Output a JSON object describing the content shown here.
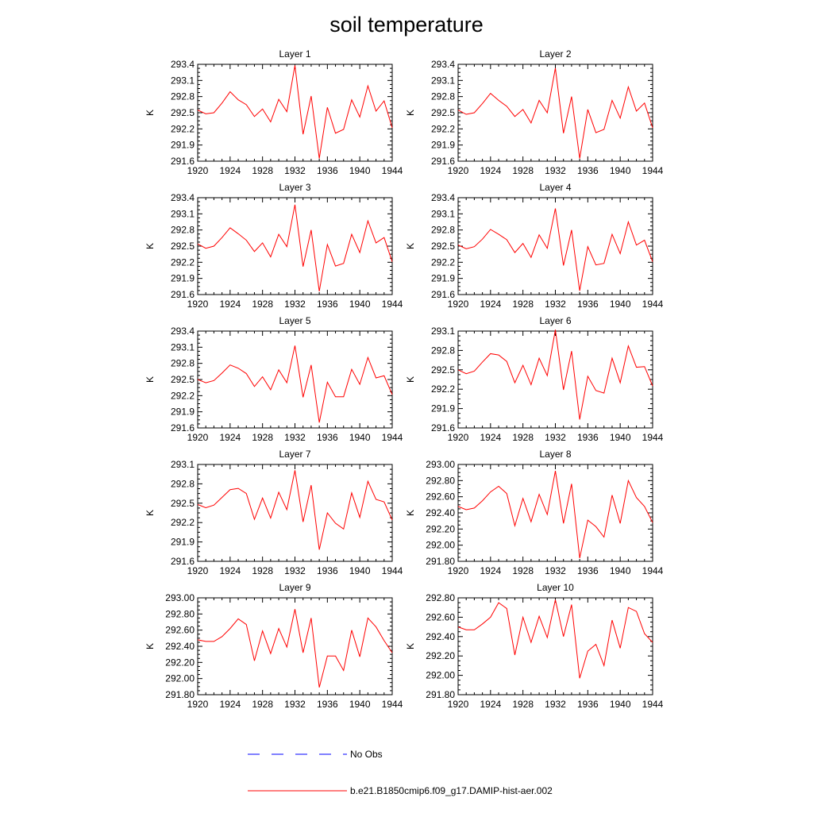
{
  "title": "soil temperature",
  "colors": {
    "model_line": "#ff0000",
    "obs_line": "#0000ff",
    "axis": "#000000"
  },
  "legend": {
    "items": [
      {
        "label": "No Obs",
        "style": "dashed",
        "color": "#0000ff"
      },
      {
        "label": "b.e21.B1850cmip6.f09_g17.DAMIP-hist-aer.002",
        "style": "solid",
        "color": "#ff0000"
      }
    ]
  },
  "chart_data": [
    {
      "type": "line",
      "title": "Layer 1",
      "ylabel": "K",
      "xlim": [
        1920,
        1944
      ],
      "ylim": [
        291.6,
        293.4
      ],
      "xticks": [
        1920,
        1924,
        1928,
        1932,
        1936,
        1940,
        1944
      ],
      "yticks": [
        "291.6",
        "291.9",
        "292.2",
        "292.5",
        "292.8",
        "293.1",
        "293.4"
      ],
      "series": [
        {
          "name": "b.e21.B1850cmip6.f09_g17.DAMIP-hist-aer.002",
          "x": [
            1920,
            1921,
            1922,
            1923,
            1924,
            1925,
            1926,
            1927,
            1928,
            1929,
            1930,
            1931,
            1932,
            1933,
            1934,
            1935,
            1936,
            1937,
            1938,
            1939,
            1940,
            1941,
            1942,
            1943,
            1944
          ],
          "values": [
            292.55,
            292.48,
            292.5,
            292.68,
            292.89,
            292.74,
            292.65,
            292.43,
            292.57,
            292.33,
            292.75,
            292.52,
            293.38,
            292.1,
            292.81,
            291.65,
            292.6,
            292.12,
            292.19,
            292.74,
            292.42,
            293.0,
            292.53,
            292.72,
            292.22
          ]
        }
      ]
    },
    {
      "type": "line",
      "title": "Layer 2",
      "ylabel": "K",
      "xlim": [
        1920,
        1944
      ],
      "ylim": [
        291.6,
        293.4
      ],
      "xticks": [
        1920,
        1924,
        1928,
        1932,
        1936,
        1940,
        1944
      ],
      "yticks": [
        "291.6",
        "291.9",
        "292.2",
        "292.5",
        "292.8",
        "293.1",
        "293.4"
      ],
      "series": [
        {
          "name": "b.e21.B1850cmip6.f09_g17.DAMIP-hist-aer.002",
          "x": [
            1920,
            1921,
            1922,
            1923,
            1924,
            1925,
            1926,
            1927,
            1928,
            1929,
            1930,
            1931,
            1932,
            1933,
            1934,
            1935,
            1936,
            1937,
            1938,
            1939,
            1940,
            1941,
            1942,
            1943,
            1944
          ],
          "values": [
            292.55,
            292.47,
            292.5,
            292.67,
            292.86,
            292.73,
            292.62,
            292.43,
            292.56,
            292.31,
            292.73,
            292.5,
            293.33,
            292.12,
            292.8,
            291.65,
            292.56,
            292.13,
            292.19,
            292.73,
            292.4,
            292.98,
            292.53,
            292.68,
            292.22
          ]
        }
      ]
    },
    {
      "type": "line",
      "title": "Layer 3",
      "ylabel": "K",
      "xlim": [
        1920,
        1944
      ],
      "ylim": [
        291.6,
        293.4
      ],
      "xticks": [
        1920,
        1924,
        1928,
        1932,
        1936,
        1940,
        1944
      ],
      "yticks": [
        "291.6",
        "291.9",
        "292.2",
        "292.5",
        "292.8",
        "293.1",
        "293.4"
      ],
      "series": [
        {
          "name": "b.e21.B1850cmip6.f09_g17.DAMIP-hist-aer.002",
          "x": [
            1920,
            1921,
            1922,
            1923,
            1924,
            1925,
            1926,
            1927,
            1928,
            1929,
            1930,
            1931,
            1932,
            1933,
            1934,
            1935,
            1936,
            1937,
            1938,
            1939,
            1940,
            1941,
            1942,
            1943,
            1944
          ],
          "values": [
            292.54,
            292.46,
            292.5,
            292.66,
            292.84,
            292.73,
            292.61,
            292.4,
            292.56,
            292.3,
            292.72,
            292.49,
            293.27,
            292.12,
            292.8,
            291.66,
            292.53,
            292.13,
            292.18,
            292.72,
            292.38,
            292.97,
            292.56,
            292.66,
            292.21
          ]
        }
      ]
    },
    {
      "type": "line",
      "title": "Layer 4",
      "ylabel": "K",
      "xlim": [
        1920,
        1944
      ],
      "ylim": [
        291.6,
        293.4
      ],
      "xticks": [
        1920,
        1924,
        1928,
        1932,
        1936,
        1940,
        1944
      ],
      "yticks": [
        "291.6",
        "291.9",
        "292.2",
        "292.5",
        "292.8",
        "293.1",
        "293.4"
      ],
      "series": [
        {
          "name": "b.e21.B1850cmip6.f09_g17.DAMIP-hist-aer.002",
          "x": [
            1920,
            1921,
            1922,
            1923,
            1924,
            1925,
            1926,
            1927,
            1928,
            1929,
            1930,
            1931,
            1932,
            1933,
            1934,
            1935,
            1936,
            1937,
            1938,
            1939,
            1940,
            1941,
            1942,
            1943,
            1944
          ],
          "values": [
            292.52,
            292.45,
            292.49,
            292.63,
            292.81,
            292.72,
            292.62,
            292.38,
            292.55,
            292.29,
            292.71,
            292.46,
            293.2,
            292.14,
            292.8,
            291.67,
            292.49,
            292.15,
            292.18,
            292.72,
            292.36,
            292.95,
            292.52,
            292.61,
            292.21
          ]
        }
      ]
    },
    {
      "type": "line",
      "title": "Layer 5",
      "ylabel": "K",
      "xlim": [
        1920,
        1944
      ],
      "ylim": [
        291.6,
        293.4
      ],
      "xticks": [
        1920,
        1924,
        1928,
        1932,
        1936,
        1940,
        1944
      ],
      "yticks": [
        "291.6",
        "291.9",
        "292.2",
        "292.5",
        "292.8",
        "293.1",
        "293.4"
      ],
      "series": [
        {
          "name": "b.e21.B1850cmip6.f09_g17.DAMIP-hist-aer.002",
          "x": [
            1920,
            1921,
            1922,
            1923,
            1924,
            1925,
            1926,
            1927,
            1928,
            1929,
            1930,
            1931,
            1932,
            1933,
            1934,
            1935,
            1936,
            1937,
            1938,
            1939,
            1940,
            1941,
            1942,
            1943,
            1944
          ],
          "values": [
            292.5,
            292.44,
            292.48,
            292.62,
            292.77,
            292.71,
            292.61,
            292.37,
            292.55,
            292.31,
            292.68,
            292.44,
            293.13,
            292.17,
            292.77,
            291.7,
            292.45,
            292.18,
            292.18,
            292.69,
            292.41,
            292.91,
            292.53,
            292.57,
            292.22
          ]
        }
      ]
    },
    {
      "type": "line",
      "title": "Layer 6",
      "ylabel": "K",
      "xlim": [
        1920,
        1944
      ],
      "ylim": [
        291.6,
        293.1
      ],
      "xticks": [
        1920,
        1924,
        1928,
        1932,
        1936,
        1940,
        1944
      ],
      "yticks": [
        "291.6",
        "291.9",
        "292.2",
        "292.5",
        "292.8",
        "293.1"
      ],
      "series": [
        {
          "name": "b.e21.B1850cmip6.f09_g17.DAMIP-hist-aer.002",
          "x": [
            1920,
            1921,
            1922,
            1923,
            1924,
            1925,
            1926,
            1927,
            1928,
            1929,
            1930,
            1931,
            1932,
            1933,
            1934,
            1935,
            1936,
            1937,
            1938,
            1939,
            1940,
            1941,
            1942,
            1943,
            1944
          ],
          "values": [
            292.5,
            292.44,
            292.48,
            292.62,
            292.75,
            292.73,
            292.63,
            292.3,
            292.57,
            292.27,
            292.68,
            292.41,
            293.12,
            292.19,
            292.79,
            291.73,
            292.4,
            292.18,
            292.14,
            292.68,
            292.3,
            292.87,
            292.54,
            292.55,
            292.25
          ]
        }
      ]
    },
    {
      "type": "line",
      "title": "Layer 7",
      "ylabel": "K",
      "xlim": [
        1920,
        1944
      ],
      "ylim": [
        291.6,
        293.1
      ],
      "xticks": [
        1920,
        1924,
        1928,
        1932,
        1936,
        1940,
        1944
      ],
      "yticks": [
        "291.6",
        "291.9",
        "292.2",
        "292.5",
        "292.8",
        "293.1"
      ],
      "series": [
        {
          "name": "b.e21.B1850cmip6.f09_g17.DAMIP-hist-aer.002",
          "x": [
            1920,
            1921,
            1922,
            1923,
            1924,
            1925,
            1926,
            1927,
            1928,
            1929,
            1930,
            1931,
            1932,
            1933,
            1934,
            1935,
            1936,
            1937,
            1938,
            1939,
            1940,
            1941,
            1942,
            1943,
            1944
          ],
          "values": [
            292.48,
            292.43,
            292.47,
            292.59,
            292.71,
            292.73,
            292.65,
            292.25,
            292.58,
            292.27,
            292.67,
            292.4,
            293.01,
            292.21,
            292.78,
            291.78,
            292.35,
            292.19,
            292.1,
            292.66,
            292.28,
            292.84,
            292.56,
            292.52,
            292.24
          ]
        }
      ]
    },
    {
      "type": "line",
      "title": "Layer 8",
      "ylabel": "K",
      "xlim": [
        1920,
        1944
      ],
      "ylim": [
        291.8,
        293.0
      ],
      "xticks": [
        1920,
        1924,
        1928,
        1932,
        1936,
        1940,
        1944
      ],
      "yticks": [
        "291.80",
        "292.00",
        "292.20",
        "292.40",
        "292.60",
        "292.80",
        "293.00"
      ],
      "series": [
        {
          "name": "b.e21.B1850cmip6.f09_g17.DAMIP-hist-aer.002",
          "x": [
            1920,
            1921,
            1922,
            1923,
            1924,
            1925,
            1926,
            1927,
            1928,
            1929,
            1930,
            1931,
            1932,
            1933,
            1934,
            1935,
            1936,
            1937,
            1938,
            1939,
            1940,
            1941,
            1942,
            1943,
            1944
          ],
          "values": [
            292.48,
            292.44,
            292.46,
            292.55,
            292.66,
            292.73,
            292.64,
            292.24,
            292.58,
            292.29,
            292.63,
            292.38,
            292.92,
            292.27,
            292.76,
            291.84,
            292.31,
            292.23,
            292.1,
            292.62,
            292.27,
            292.8,
            292.59,
            292.48,
            292.28
          ]
        }
      ]
    },
    {
      "type": "line",
      "title": "Layer 9",
      "ylabel": "K",
      "xlim": [
        1920,
        1944
      ],
      "ylim": [
        291.8,
        293.0
      ],
      "xticks": [
        1920,
        1924,
        1928,
        1932,
        1936,
        1940,
        1944
      ],
      "yticks": [
        "291.80",
        "292.00",
        "292.20",
        "292.40",
        "292.60",
        "292.80",
        "293.00"
      ],
      "series": [
        {
          "name": "b.e21.B1850cmip6.f09_g17.DAMIP-hist-aer.002",
          "x": [
            1920,
            1921,
            1922,
            1923,
            1924,
            1925,
            1926,
            1927,
            1928,
            1929,
            1930,
            1931,
            1932,
            1933,
            1934,
            1935,
            1936,
            1937,
            1938,
            1939,
            1940,
            1941,
            1942,
            1943,
            1944
          ],
          "values": [
            292.48,
            292.46,
            292.46,
            292.52,
            292.62,
            292.74,
            292.67,
            292.22,
            292.59,
            292.31,
            292.62,
            292.39,
            292.86,
            292.32,
            292.75,
            291.89,
            292.28,
            292.28,
            292.1,
            292.6,
            292.27,
            292.75,
            292.64,
            292.47,
            292.32
          ]
        }
      ]
    },
    {
      "type": "line",
      "title": "Layer 10",
      "ylabel": "K",
      "xlim": [
        1920,
        1944
      ],
      "ylim": [
        291.8,
        292.8
      ],
      "xticks": [
        1920,
        1924,
        1928,
        1932,
        1936,
        1940,
        1944
      ],
      "yticks": [
        "291.80",
        "292.00",
        "292.20",
        "292.40",
        "292.60",
        "292.80"
      ],
      "series": [
        {
          "name": "b.e21.B1850cmip6.f09_g17.DAMIP-hist-aer.002",
          "x": [
            1920,
            1921,
            1922,
            1923,
            1924,
            1925,
            1926,
            1927,
            1928,
            1929,
            1930,
            1931,
            1932,
            1933,
            1934,
            1935,
            1936,
            1937,
            1938,
            1939,
            1940,
            1941,
            1942,
            1943,
            1944
          ],
          "values": [
            292.5,
            292.47,
            292.47,
            292.53,
            292.6,
            292.75,
            292.69,
            292.21,
            292.6,
            292.34,
            292.61,
            292.39,
            292.78,
            292.4,
            292.73,
            291.97,
            292.25,
            292.32,
            292.1,
            292.57,
            292.28,
            292.7,
            292.66,
            292.43,
            292.34
          ]
        }
      ]
    }
  ]
}
